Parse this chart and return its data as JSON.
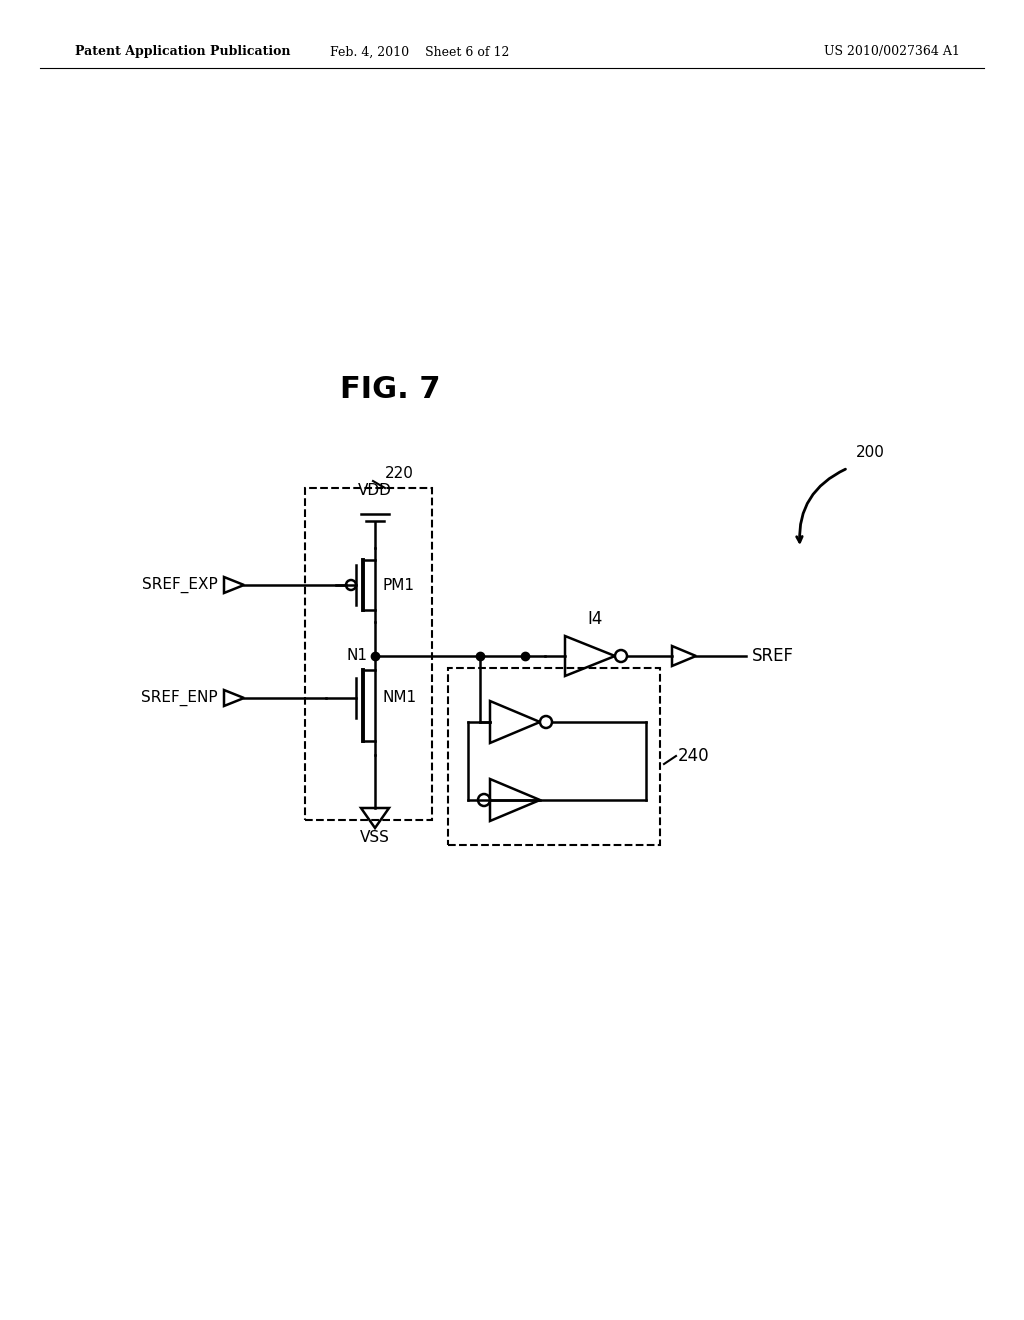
{
  "header_left": "Patent Application Publication",
  "header_center": "Feb. 4, 2010    Sheet 6 of 12",
  "header_right": "US 2010/0027364 A1",
  "fig_title": "FIG. 7",
  "label_200": "200",
  "label_220": "220",
  "label_240": "240",
  "label_14": "I4",
  "label_VDD": "VDD",
  "label_VSS": "VSS",
  "label_N1": "N1",
  "label_PM1": "PM1",
  "label_NM1": "NM1",
  "label_SREF_EXP": "SREF_EXP",
  "label_SREF_ENP": "SREF_ENP",
  "label_SREF": "SREF",
  "background": "#ffffff",
  "lc": "#000000"
}
